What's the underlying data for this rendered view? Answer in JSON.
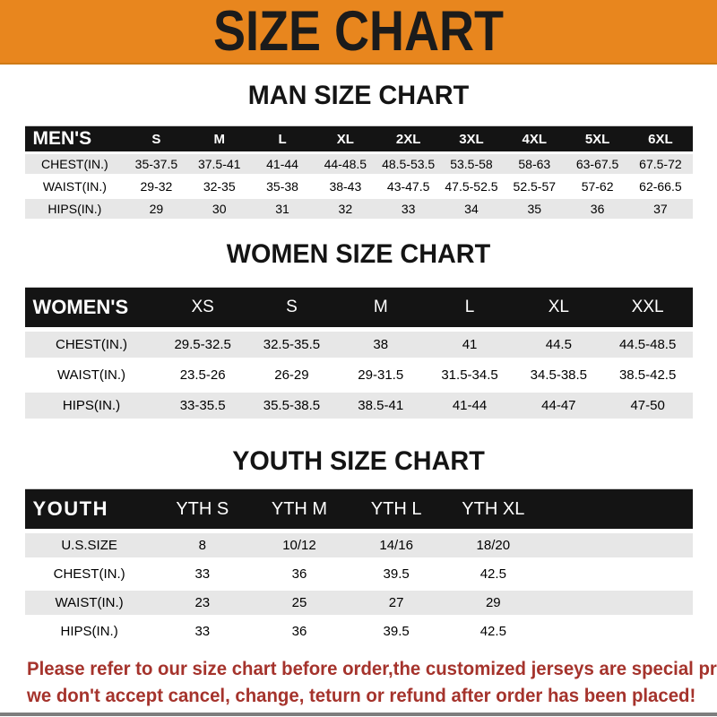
{
  "banner": {
    "title": "SIZE CHART"
  },
  "colors": {
    "banner_bg": "#E8861E",
    "table_header_bg": "#141414",
    "table_header_text": "#FFFFFF",
    "row_stripe_bg": "#E7E7E7",
    "row_bg": "#FFFFFF",
    "footer_text": "#A5332C"
  },
  "chart_data": [
    {
      "key": "men",
      "type": "table",
      "title": "MAN SIZE CHART",
      "columns": [
        "MEN'S",
        "S",
        "M",
        "L",
        "XL",
        "2XL",
        "3XL",
        "4XL",
        "5XL",
        "6XL"
      ],
      "rows": [
        [
          "CHEST(IN.)",
          "35-37.5",
          "37.5-41",
          "41-44",
          "44-48.5",
          "48.5-53.5",
          "53.5-58",
          "58-63",
          "63-67.5",
          "67.5-72"
        ],
        [
          "WAIST(IN.)",
          "29-32",
          "32-35",
          "35-38",
          "38-43",
          "43-47.5",
          "47.5-52.5",
          "52.5-57",
          "57-62",
          "62-66.5"
        ],
        [
          "HIPS(IN.)",
          "29",
          "30",
          "31",
          "32",
          "33",
          "34",
          "35",
          "36",
          "37"
        ]
      ]
    },
    {
      "key": "women",
      "type": "table",
      "title": "WOMEN SIZE CHART",
      "columns": [
        "WOMEN'S",
        "XS",
        "S",
        "M",
        "L",
        "XL",
        "XXL"
      ],
      "rows": [
        [
          "CHEST(IN.)",
          "29.5-32.5",
          "32.5-35.5",
          "38",
          "41",
          "44.5",
          "44.5-48.5"
        ],
        [
          "WAIST(IN.)",
          "23.5-26",
          "26-29",
          "29-31.5",
          "31.5-34.5",
          "34.5-38.5",
          "38.5-42.5"
        ],
        [
          "HIPS(IN.)",
          "33-35.5",
          "35.5-38.5",
          "38.5-41",
          "41-44",
          "44-47",
          "47-50"
        ]
      ]
    },
    {
      "key": "youth",
      "type": "table",
      "title": "YOUTH SIZE CHART",
      "columns": [
        "YOUTH",
        "YTH S",
        "YTH M",
        "YTH L",
        "YTH XL"
      ],
      "rows": [
        [
          "U.S.SIZE",
          "8",
          "10/12",
          "14/16",
          "18/20"
        ],
        [
          "CHEST(IN.)",
          "33",
          "36",
          "39.5",
          "42.5"
        ],
        [
          "WAIST(IN.)",
          "23",
          "25",
          "27",
          "29"
        ],
        [
          "HIPS(IN.)",
          "33",
          "36",
          "39.5",
          "42.5"
        ]
      ]
    }
  ],
  "footer": {
    "line1": "Please refer to our size chart before order,the customized jerseys are special products,",
    "line2": "we don't accept cancel, change, teturn or refund after order has been placed!"
  }
}
